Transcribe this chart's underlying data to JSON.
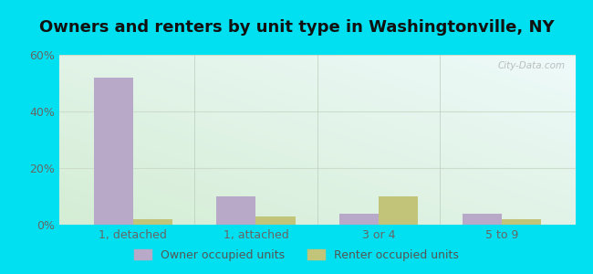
{
  "title": "Owners and renters by unit type in Washingtonville, NY",
  "categories": [
    "1, detached",
    "1, attached",
    "3 or 4",
    "5 to 9"
  ],
  "owner_values": [
    52,
    10,
    4,
    4
  ],
  "renter_values": [
    2,
    3,
    10,
    2
  ],
  "owner_color": "#b8a9c9",
  "renter_color": "#c2c47a",
  "ylim": [
    0,
    60
  ],
  "yticks": [
    0,
    20,
    40,
    60
  ],
  "ytick_labels": [
    "0%",
    "20%",
    "40%",
    "60%"
  ],
  "background_outer": "#00e0f0",
  "background_inner_topleft": "#d4edd4",
  "background_inner_topright": "#eefafa",
  "background_inner_bottom": "#e8f5e0",
  "grid_color": "#ccddcc",
  "title_fontsize": 13,
  "axis_label_fontsize": 9,
  "legend_label_owner": "Owner occupied units",
  "legend_label_renter": "Renter occupied units",
  "bar_width": 0.32,
  "watermark": "City-Data.com"
}
